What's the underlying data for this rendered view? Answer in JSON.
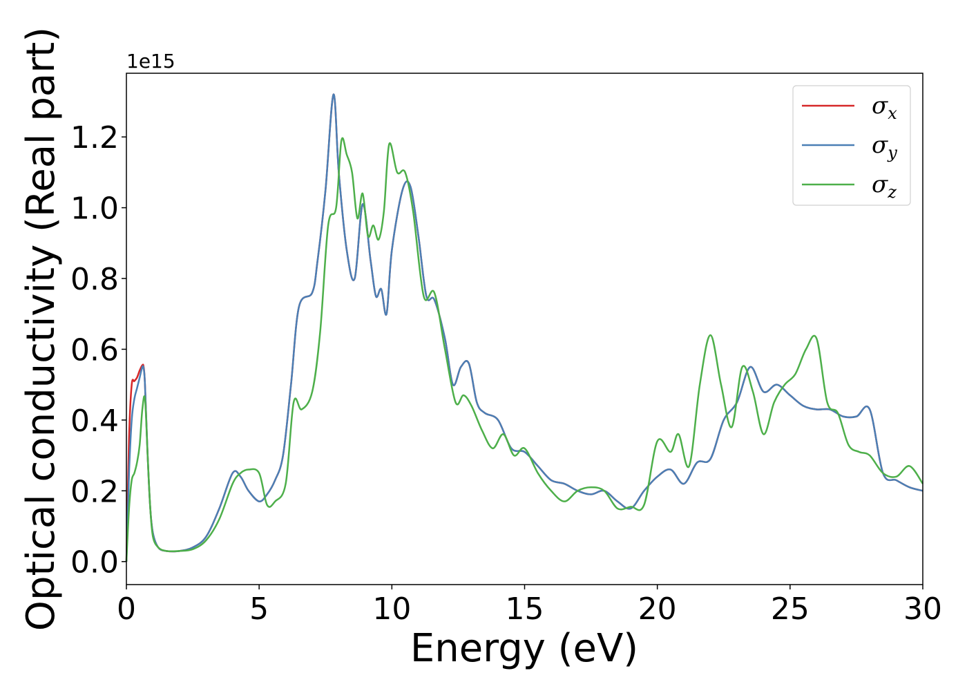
{
  "chart_data": {
    "type": "line",
    "title": "",
    "xlabel": "Energy (eV)",
    "ylabel": "Optical conductivity (Real part)",
    "y_offset_label": "1e15",
    "y_multiplier": 1000000000000000.0,
    "xlim": [
      0,
      30
    ],
    "ylim": [
      -0.065,
      1.38
    ],
    "xticks": [
      0,
      5,
      10,
      15,
      20,
      25,
      30
    ],
    "xtick_labels": [
      "0",
      "5",
      "10",
      "15",
      "20",
      "25",
      "30"
    ],
    "yticks": [
      0.0,
      0.2,
      0.4,
      0.6,
      0.8,
      1.0,
      1.2
    ],
    "ytick_labels": [
      "0.0",
      "0.2",
      "0.4",
      "0.6",
      "0.8",
      "1.0",
      "1.2"
    ],
    "grid": false,
    "legend_position": "top-right",
    "series": [
      {
        "name": "σx",
        "legend_base": "σ",
        "legend_sub": "x",
        "color": "#d62728",
        "x": [
          0,
          0.1,
          0.2,
          0.3,
          0.4,
          0.5,
          0.6,
          0.65,
          0.7,
          0.8,
          0.9,
          1.0,
          1.2,
          1.5,
          2.0,
          2.5,
          3.0,
          3.5,
          4.0,
          4.3,
          4.6,
          5.0,
          5.3,
          5.6,
          5.9,
          6.2,
          6.5,
          7.0,
          7.2,
          7.5,
          7.8,
          8.0,
          8.3,
          8.6,
          8.9,
          9.2,
          9.4,
          9.6,
          9.8,
          10.0,
          10.4,
          10.7,
          11.0,
          11.3,
          11.6,
          12.0,
          12.3,
          12.6,
          12.9,
          13.2,
          13.5,
          14.0,
          14.5,
          15.0,
          15.5,
          16.0,
          16.5,
          17.0,
          17.5,
          18.0,
          18.5,
          19.0,
          19.5,
          20.0,
          20.5,
          21.0,
          21.5,
          22.0,
          22.5,
          23.0,
          23.5,
          24.0,
          24.5,
          25.0,
          25.5,
          26.0,
          26.5,
          27.0,
          27.5,
          28.0,
          28.5,
          29.0,
          29.5,
          30.0
        ],
        "y": [
          0.0,
          0.35,
          0.5,
          0.51,
          0.52,
          0.54,
          0.555,
          0.55,
          0.5,
          0.3,
          0.15,
          0.08,
          0.04,
          0.03,
          0.03,
          0.04,
          0.07,
          0.15,
          0.25,
          0.24,
          0.2,
          0.17,
          0.19,
          0.23,
          0.3,
          0.5,
          0.72,
          0.76,
          0.85,
          1.05,
          1.32,
          1.1,
          0.88,
          0.8,
          1.01,
          0.85,
          0.75,
          0.77,
          0.7,
          0.88,
          1.05,
          1.06,
          0.92,
          0.75,
          0.74,
          0.63,
          0.5,
          0.55,
          0.56,
          0.45,
          0.42,
          0.4,
          0.32,
          0.31,
          0.27,
          0.23,
          0.22,
          0.2,
          0.19,
          0.2,
          0.17,
          0.15,
          0.2,
          0.24,
          0.26,
          0.22,
          0.28,
          0.29,
          0.4,
          0.45,
          0.55,
          0.48,
          0.5,
          0.47,
          0.44,
          0.43,
          0.43,
          0.41,
          0.41,
          0.43,
          0.25,
          0.23,
          0.21,
          0.2
        ]
      },
      {
        "name": "σy",
        "legend_base": "σ",
        "legend_sub": "y",
        "color": "#4a7fb5",
        "x": [
          0,
          0.1,
          0.2,
          0.3,
          0.4,
          0.5,
          0.6,
          0.65,
          0.7,
          0.8,
          0.9,
          1.0,
          1.2,
          1.5,
          2.0,
          2.5,
          3.0,
          3.5,
          4.0,
          4.3,
          4.6,
          5.0,
          5.3,
          5.6,
          5.9,
          6.2,
          6.5,
          7.0,
          7.2,
          7.5,
          7.8,
          8.0,
          8.3,
          8.6,
          8.9,
          9.2,
          9.4,
          9.6,
          9.8,
          10.0,
          10.4,
          10.7,
          11.0,
          11.3,
          11.6,
          12.0,
          12.3,
          12.6,
          12.9,
          13.2,
          13.5,
          14.0,
          14.5,
          15.0,
          15.5,
          16.0,
          16.5,
          17.0,
          17.5,
          18.0,
          18.5,
          19.0,
          19.5,
          20.0,
          20.5,
          21.0,
          21.5,
          22.0,
          22.5,
          23.0,
          23.5,
          24.0,
          24.5,
          25.0,
          25.5,
          26.0,
          26.5,
          27.0,
          27.5,
          28.0,
          28.5,
          29.0,
          29.5,
          30.0
        ],
        "y": [
          0.0,
          0.25,
          0.4,
          0.46,
          0.49,
          0.52,
          0.55,
          0.545,
          0.5,
          0.3,
          0.15,
          0.08,
          0.04,
          0.03,
          0.03,
          0.04,
          0.07,
          0.15,
          0.25,
          0.24,
          0.2,
          0.17,
          0.19,
          0.23,
          0.3,
          0.5,
          0.72,
          0.76,
          0.85,
          1.05,
          1.32,
          1.1,
          0.88,
          0.8,
          1.01,
          0.85,
          0.75,
          0.77,
          0.7,
          0.88,
          1.05,
          1.06,
          0.92,
          0.75,
          0.74,
          0.63,
          0.5,
          0.55,
          0.56,
          0.45,
          0.42,
          0.4,
          0.32,
          0.31,
          0.27,
          0.23,
          0.22,
          0.2,
          0.19,
          0.2,
          0.17,
          0.15,
          0.2,
          0.24,
          0.26,
          0.22,
          0.28,
          0.29,
          0.4,
          0.45,
          0.55,
          0.48,
          0.5,
          0.47,
          0.44,
          0.43,
          0.43,
          0.41,
          0.41,
          0.43,
          0.25,
          0.23,
          0.21,
          0.2
        ]
      },
      {
        "name": "σz",
        "legend_base": "σ",
        "legend_sub": "z",
        "color": "#4daf4a",
        "x": [
          0,
          0.1,
          0.2,
          0.3,
          0.4,
          0.5,
          0.6,
          0.7,
          0.8,
          0.9,
          1.0,
          1.2,
          1.5,
          2.0,
          2.5,
          3.0,
          3.5,
          4.0,
          4.3,
          4.6,
          5.0,
          5.3,
          5.6,
          6.0,
          6.3,
          6.6,
          7.0,
          7.3,
          7.6,
          7.9,
          8.1,
          8.3,
          8.5,
          8.7,
          8.9,
          9.1,
          9.3,
          9.5,
          9.7,
          9.9,
          10.2,
          10.5,
          10.8,
          11.2,
          11.6,
          12.0,
          12.4,
          12.7,
          13.0,
          13.4,
          13.8,
          14.2,
          14.6,
          15.0,
          15.5,
          16.0,
          16.5,
          17.0,
          17.5,
          18.0,
          18.5,
          19.0,
          19.5,
          20.0,
          20.5,
          20.8,
          21.2,
          21.6,
          22.0,
          22.4,
          22.8,
          23.2,
          23.6,
          24.0,
          24.4,
          24.8,
          25.2,
          25.6,
          26.0,
          26.4,
          26.8,
          27.2,
          27.6,
          28.0,
          28.5,
          29.0,
          29.5,
          30.0
        ],
        "y": [
          0.0,
          0.15,
          0.23,
          0.25,
          0.28,
          0.33,
          0.43,
          0.46,
          0.3,
          0.15,
          0.07,
          0.04,
          0.03,
          0.03,
          0.035,
          0.06,
          0.12,
          0.22,
          0.25,
          0.26,
          0.25,
          0.16,
          0.17,
          0.22,
          0.45,
          0.43,
          0.48,
          0.65,
          0.95,
          1.0,
          1.19,
          1.15,
          1.1,
          0.97,
          1.04,
          0.92,
          0.95,
          0.91,
          0.99,
          1.18,
          1.1,
          1.1,
          0.99,
          0.75,
          0.76,
          0.6,
          0.45,
          0.47,
          0.44,
          0.37,
          0.32,
          0.36,
          0.3,
          0.32,
          0.25,
          0.2,
          0.17,
          0.2,
          0.21,
          0.2,
          0.15,
          0.155,
          0.16,
          0.34,
          0.31,
          0.36,
          0.27,
          0.5,
          0.64,
          0.5,
          0.38,
          0.55,
          0.48,
          0.36,
          0.45,
          0.5,
          0.53,
          0.6,
          0.63,
          0.45,
          0.42,
          0.33,
          0.31,
          0.3,
          0.25,
          0.24,
          0.27,
          0.22
        ]
      }
    ]
  }
}
